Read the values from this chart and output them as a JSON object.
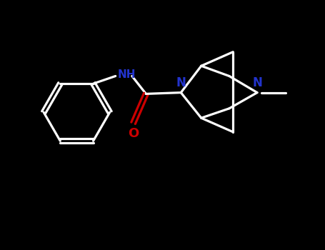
{
  "bg_color": "#000000",
  "bond_color": "#ffffff",
  "N_color": "#2233cc",
  "O_color": "#cc0000",
  "line_width": 2.3,
  "figsize": [
    4.55,
    3.5
  ],
  "dpi": 100,
  "xlim": [
    -0.3,
    4.8
  ],
  "ylim": [
    0.0,
    3.8
  ]
}
